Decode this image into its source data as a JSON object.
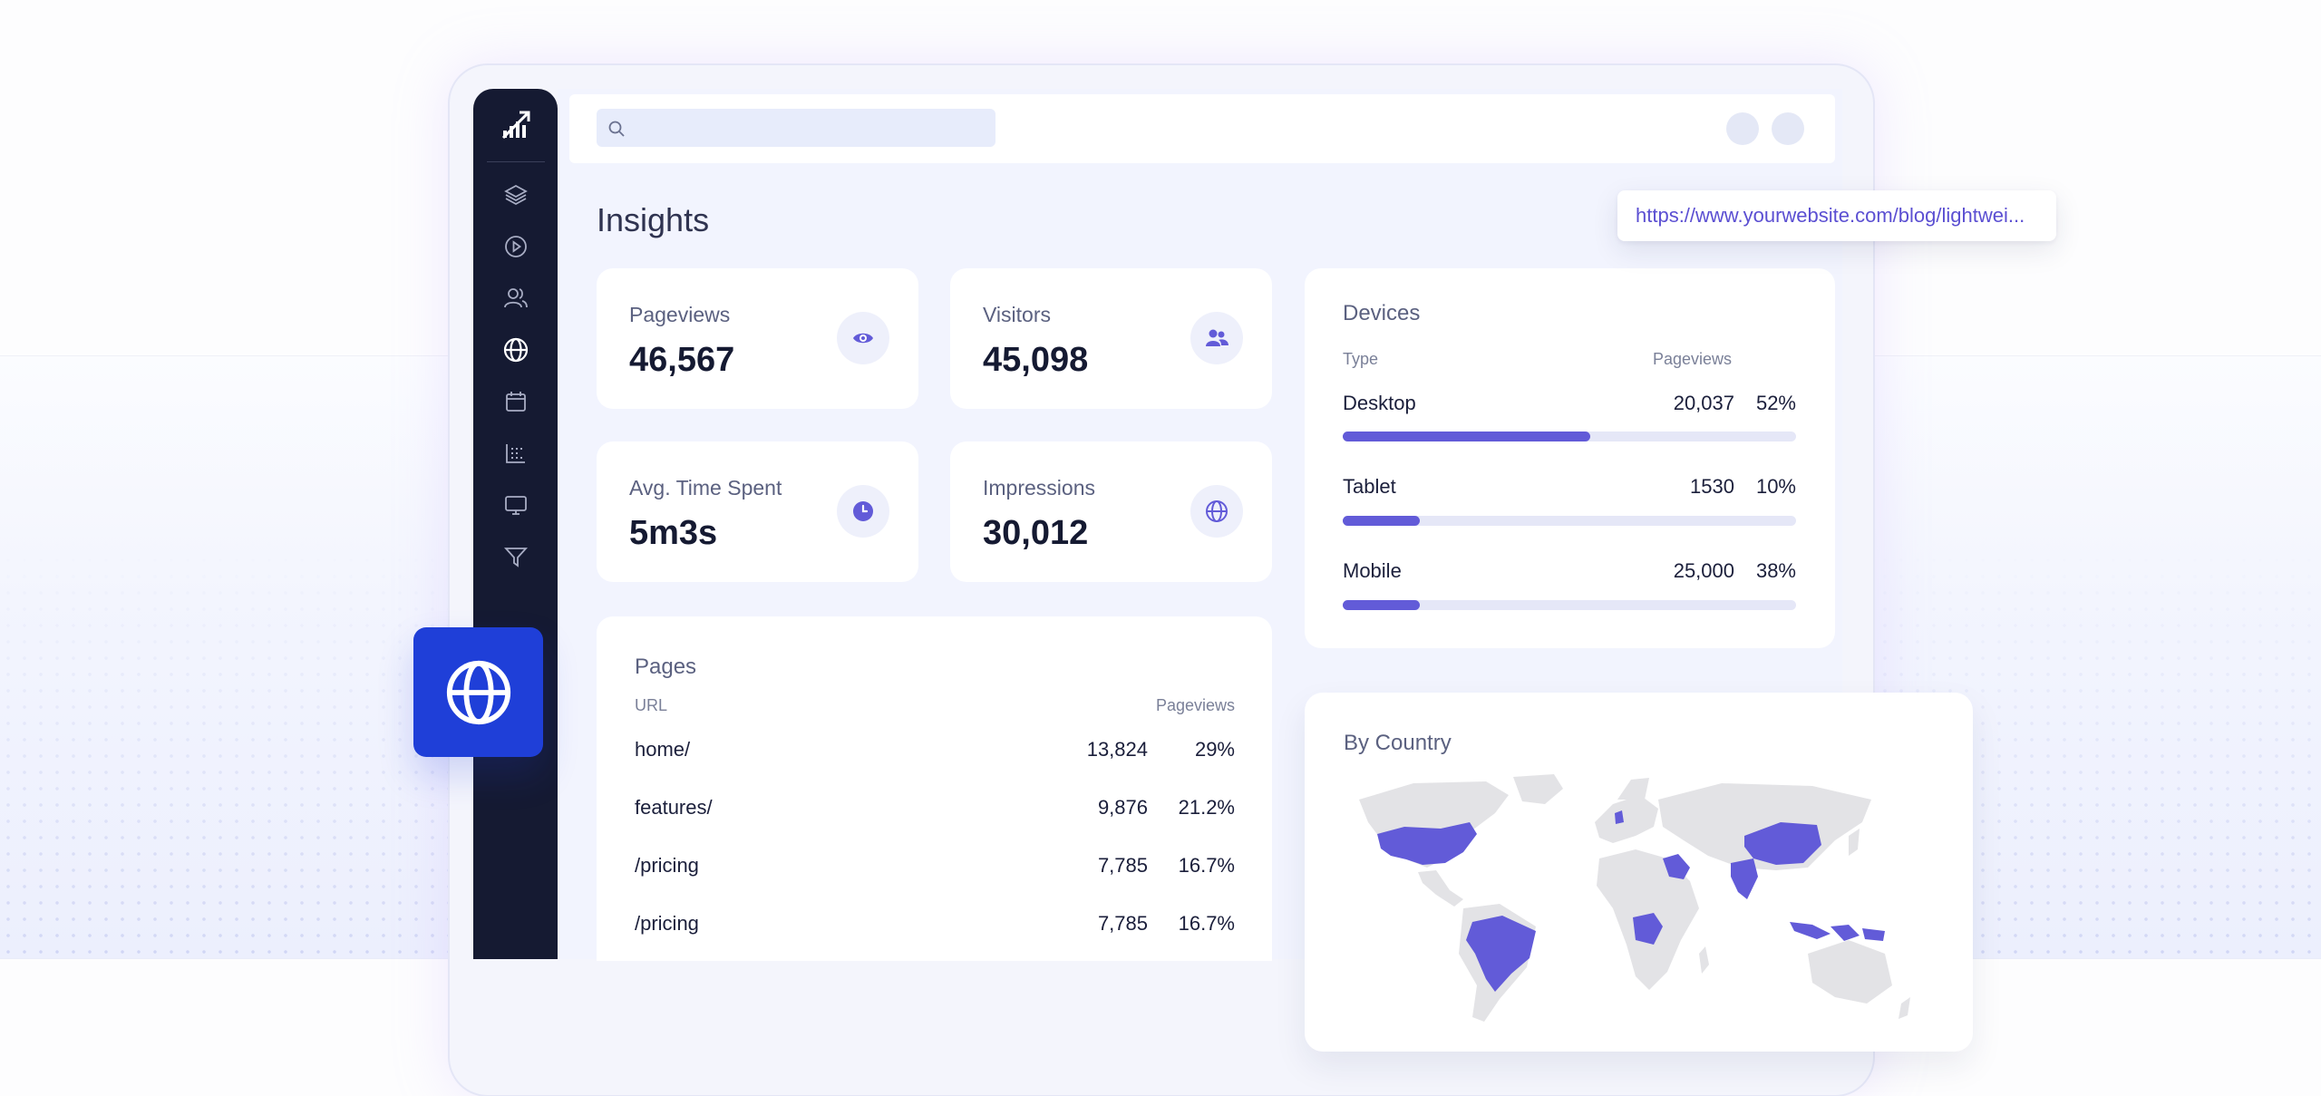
{
  "search": {
    "placeholder": ""
  },
  "url_popup": "https://www.yourwebsite.com/blog/lightwei...",
  "page_title": "Insights",
  "stats": [
    {
      "label": "Pageviews",
      "value": "46,567",
      "icon": "eye-icon"
    },
    {
      "label": "Visitors",
      "value": "45,098",
      "icon": "users-icon"
    },
    {
      "label": "Avg. Time Spent",
      "value": "5m3s",
      "icon": "clock-icon"
    },
    {
      "label": "Impressions",
      "value": "30,012",
      "icon": "globe-icon"
    }
  ],
  "devices": {
    "title": "Devices",
    "col_type": "Type",
    "col_pageviews": "Pageviews",
    "rows": [
      {
        "type": "Desktop",
        "pageviews": "20,037",
        "percent": "52%",
        "fill": 0.545
      },
      {
        "type": "Tablet",
        "pageviews": "1530",
        "percent": "10%",
        "fill": 0.17
      },
      {
        "type": "Mobile",
        "pageviews": "25,000",
        "percent": "38%",
        "fill": 0.17
      }
    ]
  },
  "pages": {
    "title": "Pages",
    "col_url": "URL",
    "col_pageviews": "Pageviews",
    "rows": [
      {
        "url": "home/",
        "pageviews": "13,824",
        "percent": "29%"
      },
      {
        "url": "features/",
        "pageviews": "9,876",
        "percent": "21.2%"
      },
      {
        "url": "/pricing",
        "pageviews": "7,785",
        "percent": "16.7%"
      },
      {
        "url": "/pricing",
        "pageviews": "7,785",
        "percent": "16.7%"
      }
    ]
  },
  "by_country": {
    "title": "By Country",
    "highlighted": [
      "United States",
      "Brazil",
      "DR Congo",
      "Egypt/Middle East",
      "India",
      "China",
      "Indonesia",
      "Denmark"
    ]
  },
  "sidebar": {
    "items": [
      "layers-icon",
      "play-icon",
      "users-icon",
      "globe-icon",
      "calendar-icon",
      "chart-grid-icon",
      "monitor-icon",
      "filter-icon"
    ],
    "active": "globe-icon"
  },
  "colors": {
    "sidebar_bg": "#151a32",
    "accent": "#625bd8",
    "tile_blue": "#1f3fd8",
    "map_land": "#e4e4e7"
  }
}
